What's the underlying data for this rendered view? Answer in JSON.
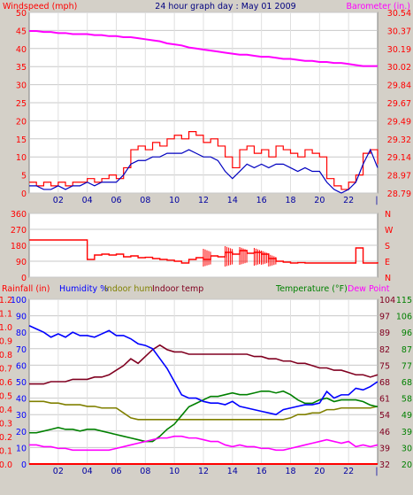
{
  "title": "24 hour graph day : May 01 2009",
  "colors": {
    "wind": "#ff0000",
    "gust": "#ff0000",
    "avgwind": "#0000c0",
    "barometer": "#ff00ff",
    "direction": "#ff0000",
    "humidity": "#0000ff",
    "indoor_hum": "#808000",
    "indoor_temp": "#800020",
    "temperature": "#008000",
    "dewpoint": "#ff00ff",
    "rainfall": "#ff0000",
    "background": "#ffffff",
    "frame": "#d4d0c8"
  },
  "chart_data": [
    {
      "type": "line",
      "name": "wind-barometer",
      "labels": {
        "left": "Windspeed (mph)",
        "right": "Barometer (in.)"
      },
      "x_ticks": [
        "02",
        "04",
        "06",
        "08",
        "10",
        "12",
        "14",
        "16",
        "18",
        "20",
        "22"
      ],
      "y_left_ticks": [
        "0",
        "5",
        "10",
        "15",
        "20",
        "25",
        "30",
        "35",
        "40",
        "45",
        "50"
      ],
      "y_left_range": [
        0,
        50
      ],
      "y_right_ticks": [
        "28.79",
        "28.97",
        "29.14",
        "29.32",
        "29.49",
        "29.67",
        "29.84",
        "30.02",
        "30.19",
        "30.37",
        "30.54"
      ],
      "y_right_range": [
        28.79,
        30.54
      ],
      "hours": [
        0.0,
        0.5,
        1.0,
        1.5,
        2.0,
        2.5,
        3.0,
        3.5,
        4.0,
        4.5,
        5.0,
        5.5,
        6.0,
        6.5,
        7.0,
        7.5,
        8.0,
        8.5,
        9.0,
        9.5,
        10.0,
        10.5,
        11.0,
        11.5,
        12.0,
        12.5,
        13.0,
        13.5,
        14.0,
        14.5,
        15.0,
        15.5,
        16.0,
        16.5,
        17.0,
        17.5,
        18.0,
        18.5,
        19.0,
        19.5,
        20.0,
        20.5,
        21.0,
        21.5,
        22.0,
        22.5,
        23.0,
        23.5,
        24.0
      ],
      "gust": [
        3,
        2,
        3,
        2,
        3,
        2,
        3,
        3,
        4,
        3,
        4,
        5,
        4,
        7,
        12,
        13,
        12,
        14,
        13,
        15,
        16,
        15,
        17,
        16,
        14,
        15,
        13,
        10,
        7,
        12,
        13,
        11,
        12,
        10,
        13,
        12,
        11,
        10,
        12,
        11,
        10,
        4,
        2,
        1,
        3,
        5,
        11,
        12,
        8
      ],
      "avgwind": [
        2,
        2,
        1,
        1,
        2,
        1,
        2,
        2,
        3,
        2,
        3,
        3,
        3,
        5,
        8,
        9,
        9,
        10,
        10,
        11,
        11,
        11,
        12,
        11,
        10,
        10,
        9,
        6,
        4,
        6,
        8,
        7,
        8,
        7,
        8,
        8,
        7,
        6,
        7,
        6,
        6,
        3,
        1,
        0,
        1,
        3,
        8,
        12,
        7
      ],
      "barometer": [
        30.36,
        30.36,
        30.35,
        30.35,
        30.34,
        30.34,
        30.33,
        30.33,
        30.33,
        30.32,
        30.32,
        30.31,
        30.31,
        30.3,
        30.3,
        30.29,
        30.28,
        30.27,
        30.26,
        30.24,
        30.23,
        30.22,
        30.2,
        30.19,
        30.18,
        30.17,
        30.16,
        30.15,
        30.14,
        30.13,
        30.13,
        30.12,
        30.11,
        30.11,
        30.1,
        30.09,
        30.09,
        30.08,
        30.07,
        30.07,
        30.06,
        30.06,
        30.05,
        30.05,
        30.04,
        30.03,
        30.02,
        30.02,
        30.02
      ]
    },
    {
      "type": "line",
      "name": "wind-direction",
      "y_left_ticks": [
        "0",
        "90",
        "180",
        "270",
        "360"
      ],
      "y_left_range": [
        0,
        360
      ],
      "y_right_ticks": [
        "N",
        "E",
        "S",
        "W",
        "N"
      ],
      "hours": [
        0.0,
        0.5,
        1.0,
        1.5,
        2.0,
        2.5,
        3.0,
        3.5,
        4.0,
        4.5,
        5.0,
        5.5,
        6.0,
        6.5,
        7.0,
        7.5,
        8.0,
        8.5,
        9.0,
        9.5,
        10.0,
        10.5,
        11.0,
        11.5,
        12.0,
        12.5,
        13.0,
        13.5,
        14.0,
        14.5,
        15.0,
        15.5,
        16.0,
        16.5,
        17.0,
        17.5,
        18.0,
        18.5,
        19.0,
        19.5,
        20.0,
        20.5,
        21.0,
        21.5,
        22.0,
        22.5,
        23.0,
        23.5,
        24.0
      ],
      "direction": [
        210,
        210,
        210,
        210,
        210,
        210,
        210,
        210,
        100,
        125,
        130,
        125,
        130,
        115,
        120,
        110,
        112,
        105,
        100,
        96,
        90,
        80,
        100,
        110,
        100,
        120,
        115,
        140,
        130,
        150,
        135,
        140,
        130,
        105,
        90,
        85,
        80,
        82,
        80,
        80,
        80,
        80,
        80,
        80,
        80,
        165,
        80,
        80,
        85
      ],
      "spikes": [
        [
          12.0,
          60,
          160
        ],
        [
          13.5,
          60,
          175
        ],
        [
          14.5,
          70,
          170
        ],
        [
          15.5,
          65,
          165
        ],
        [
          16.0,
          70,
          150
        ],
        [
          16.5,
          60,
          130
        ]
      ]
    },
    {
      "type": "line",
      "name": "temp-humidity-rain",
      "labels": {
        "rainfall": "Rainfall (in)",
        "humidity": "Humidity %",
        "indoor_hum": "Indoor hum",
        "indoor_temp": "Indoor temp",
        "temperature": "Temperature (°F)",
        "dewpoint": "Dew Point"
      },
      "x_ticks": [
        "02",
        "04",
        "06",
        "08",
        "10",
        "12",
        "14",
        "16",
        "18",
        "20",
        "22"
      ],
      "y_rain_ticks": [
        "0.0",
        "0.1",
        "0.2",
        "0.3",
        "0.4",
        "0.5",
        "0.6",
        "0.7",
        "0.8",
        "0.9",
        "1.0",
        "1.1",
        "1.2"
      ],
      "y_rain_range": [
        0,
        1.2
      ],
      "y_hum_ticks": [
        "0",
        "10",
        "20",
        "30",
        "40",
        "50",
        "60",
        "70",
        "80",
        "90",
        "100"
      ],
      "y_hum_range": [
        0,
        100
      ],
      "y_indoor_ticks": [
        "32",
        "39",
        "46",
        "54",
        "61",
        "68",
        "75",
        "82",
        "89",
        "97",
        "104"
      ],
      "y_indoor_range": [
        32,
        104
      ],
      "y_temp_ticks": [
        "20",
        "30",
        "39",
        "49",
        "58",
        "68",
        "77",
        "87",
        "96",
        "106",
        "115"
      ],
      "y_temp_range": [
        20,
        115
      ],
      "hours": [
        0.0,
        0.5,
        1.0,
        1.5,
        2.0,
        2.5,
        3.0,
        3.5,
        4.0,
        4.5,
        5.0,
        5.5,
        6.0,
        6.5,
        7.0,
        7.5,
        8.0,
        8.5,
        9.0,
        9.5,
        10.0,
        10.5,
        11.0,
        11.5,
        12.0,
        12.5,
        13.0,
        13.5,
        14.0,
        14.5,
        15.0,
        15.5,
        16.0,
        16.5,
        17.0,
        17.5,
        18.0,
        18.5,
        19.0,
        19.5,
        20.0,
        20.5,
        21.0,
        21.5,
        22.0,
        22.5,
        23.0,
        23.5,
        24.0
      ],
      "humidity": [
        84,
        82,
        80,
        77,
        79,
        77,
        80,
        78,
        78,
        77,
        79,
        81,
        78,
        78,
        76,
        73,
        72,
        70,
        64,
        58,
        50,
        42,
        40,
        40,
        38,
        37,
        37,
        36,
        38,
        35,
        34,
        33,
        32,
        31,
        30,
        33,
        34,
        35,
        36,
        36,
        37,
        44,
        40,
        42,
        42,
        46,
        45,
        47,
        50
      ],
      "indoor_hum": [
        38,
        38,
        38,
        37,
        37,
        36,
        36,
        36,
        35,
        35,
        34,
        34,
        34,
        31,
        28,
        27,
        27,
        27,
        27,
        27,
        27,
        27,
        27,
        27,
        27,
        27,
        27,
        27,
        27,
        27,
        27,
        27,
        27,
        27,
        27,
        27,
        28,
        30,
        30,
        31,
        31,
        33,
        33,
        34,
        34,
        34,
        34,
        34,
        35
      ],
      "indoor_temp": [
        67,
        67,
        67,
        68,
        68,
        68,
        69,
        69,
        69,
        70,
        70,
        71,
        73,
        75,
        78,
        76,
        79,
        82,
        84,
        82,
        81,
        81,
        80,
        80,
        80,
        80,
        80,
        80,
        80,
        80,
        80,
        79,
        79,
        78,
        78,
        77,
        77,
        76,
        76,
        75,
        74,
        74,
        73,
        73,
        72,
        71,
        71,
        70,
        71
      ],
      "temperature": [
        38,
        38,
        39,
        40,
        41,
        40,
        40,
        39,
        40,
        40,
        39,
        38,
        37,
        36,
        35,
        34,
        33,
        33,
        36,
        40,
        43,
        48,
        53,
        55,
        57,
        59,
        59,
        60,
        61,
        60,
        60,
        61,
        62,
        62,
        61,
        62,
        60,
        57,
        55,
        55,
        57,
        58,
        56,
        57,
        57,
        57,
        56,
        54,
        53
      ],
      "dewpoint": [
        31,
        31,
        30,
        30,
        29,
        29,
        28,
        28,
        28,
        28,
        28,
        28,
        29,
        30,
        31,
        32,
        33,
        34,
        35,
        35,
        36,
        36,
        35,
        35,
        34,
        33,
        33,
        31,
        30,
        31,
        30,
        30,
        29,
        29,
        28,
        28,
        29,
        30,
        31,
        32,
        33,
        34,
        33,
        32,
        33,
        30,
        31,
        30,
        31
      ],
      "rainfall": [
        0,
        0,
        0,
        0,
        0,
        0,
        0,
        0,
        0,
        0,
        0,
        0,
        0,
        0,
        0,
        0,
        0,
        0,
        0,
        0,
        0,
        0,
        0,
        0,
        0,
        0,
        0,
        0,
        0,
        0,
        0,
        0,
        0,
        0,
        0,
        0,
        0,
        0,
        0,
        0,
        0,
        0,
        0,
        0,
        0,
        0,
        0,
        0,
        0
      ]
    }
  ]
}
